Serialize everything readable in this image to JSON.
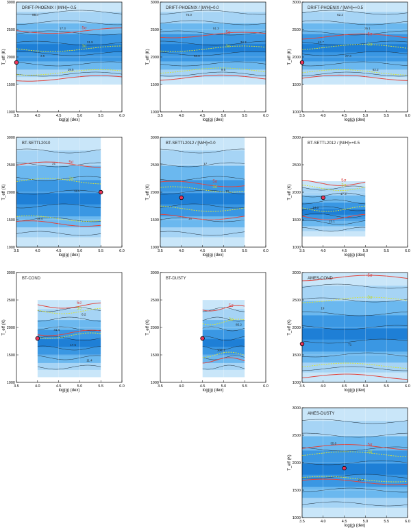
{
  "colors": {
    "band_outer": "#c9e6f9",
    "band_light": "#a6d4f5",
    "band_mid": "#6bb8ef",
    "band_dark": "#3a97e3",
    "band_darkest": "#1e7fd6",
    "contour": "#1d2d3a",
    "sigma5": "#e0463f",
    "sigma3": "#d9e23a",
    "star_fill": "#e8365a"
  },
  "axes": {
    "xlabel": "log(g) (dex)",
    "ylabel": "T_eff (K)",
    "xticks": [
      "3.5",
      "4.0",
      "4.5",
      "5.0",
      "5.5",
      "6.0"
    ],
    "yticks": [
      "1000",
      "1500",
      "2000",
      "2500",
      "3000"
    ]
  },
  "chart_data": [
    {
      "type": "heatmap",
      "title": "DRIFT-PHOENIX / [M/H]=-0.5",
      "xlim": [
        3.5,
        6.0
      ],
      "ylim": [
        1000,
        3000
      ],
      "grid": true,
      "coverage": {
        "x": [
          3.5,
          6.0
        ],
        "y": [
          1500,
          3000
        ]
      },
      "best_fit": {
        "x": 3.5,
        "y": 1900
      },
      "sigma5_T": [
        2480,
        1610
      ],
      "sigma3_T": [
        2150,
        1720
      ],
      "contour_levels": [
        "85.3",
        "17.3",
        "31.9",
        "3.5",
        "19.5"
      ]
    },
    {
      "type": "heatmap",
      "title": "DRIFT-PHOENIX / [M/H]=0.0",
      "xlim": [
        3.5,
        6.0
      ],
      "ylim": [
        1000,
        3000
      ],
      "grid": true,
      "coverage": {
        "x": [
          3.5,
          6.0
        ],
        "y": [
          1500,
          3000
        ]
      },
      "best_fit": null,
      "sigma5_T": [
        2400,
        1620
      ],
      "sigma3_T": [
        2150,
        1750
      ],
      "contour_levels": [
        "75.0",
        "51.3",
        "34.3",
        "58.0",
        "9.5"
      ]
    },
    {
      "type": "heatmap",
      "title": "DRIFT-PHOENIX / [M/H]=+0.5",
      "xlim": [
        3.5,
        6.0
      ],
      "ylim": [
        1000,
        3000
      ],
      "grid": true,
      "coverage": {
        "x": [
          3.5,
          6.0
        ],
        "y": [
          1500,
          3000
        ]
      },
      "best_fit": {
        "x": 3.5,
        "y": 1900
      },
      "sigma5_T": [
        2370,
        1620
      ],
      "sigma3_T": [
        2180,
        1720
      ],
      "contour_levels": [
        "62.2",
        "35.1",
        "41.7",
        "27.3",
        "62.2"
      ]
    },
    {
      "type": "heatmap",
      "title": "BT-SETTL2010",
      "xlim": [
        3.5,
        6.0
      ],
      "ylim": [
        1000,
        3000
      ],
      "grid": true,
      "coverage": {
        "x": [
          3.5,
          5.5
        ],
        "y": [
          1000,
          3000
        ]
      },
      "best_fit": {
        "x": 5.5,
        "y": 2000
      },
      "sigma5_T": [
        2500,
        1430
      ],
      "sigma3_T": [
        2200,
        1520
      ],
      "contour_levels": [
        "21",
        "16.5",
        "22.4"
      ]
    },
    {
      "type": "heatmap",
      "title": "BT-SETTL2012 / [M/H]=0.0",
      "xlim": [
        3.5,
        6.0
      ],
      "ylim": [
        1000,
        3000
      ],
      "grid": true,
      "coverage": {
        "x": [
          3.5,
          5.5
        ],
        "y": [
          1000,
          3000
        ]
      },
      "best_fit": {
        "x": 4.0,
        "y": 1900
      },
      "sigma5_T": [
        2150,
        1550
      ],
      "sigma3_T": [
        2050,
        1700
      ],
      "contour_levels": [
        "17",
        "16",
        "18"
      ]
    },
    {
      "type": "heatmap",
      "title": "BT-SETTL2012 / [M/H]=+0.5",
      "xlim": [
        3.5,
        6.0
      ],
      "ylim": [
        1000,
        3000
      ],
      "grid": true,
      "coverage": {
        "x": [
          3.5,
          5.0
        ],
        "y": [
          1200,
          2200
        ]
      },
      "best_fit": {
        "x": 4.0,
        "y": 1900
      },
      "sigma5_T": [
        2170,
        1550
      ],
      "sigma3_T": [
        2080,
        1700
      ],
      "contour_levels": [
        "17.3",
        "14.3",
        "22.1"
      ]
    },
    {
      "type": "heatmap",
      "title": "BT-COND",
      "xlim": [
        3.5,
        6.0
      ],
      "ylim": [
        1000,
        3000
      ],
      "grid": true,
      "coverage": {
        "x": [
          4.0,
          5.5
        ],
        "y": [
          1100,
          2500
        ]
      },
      "best_fit": {
        "x": 4.0,
        "y": 1800
      },
      "sigma5_T": [
        2400,
        1900
      ],
      "sigma3_T": [
        2300,
        1850
      ],
      "contour_levels": [
        "8.2",
        "41.5",
        "17.5",
        "11.4"
      ]
    },
    {
      "type": "heatmap",
      "title": "BT-DUSTY",
      "xlim": [
        3.5,
        6.0
      ],
      "ylim": [
        1000,
        3000
      ],
      "grid": true,
      "coverage": {
        "x": [
          4.5,
          5.5
        ],
        "y": [
          1100,
          2500
        ]
      },
      "best_fit": {
        "x": 4.5,
        "y": 1800
      },
      "sigma5_T": [
        2350,
        1400
      ],
      "sigma3_T": [
        2100,
        1500
      ],
      "contour_levels": [
        "85.2",
        "100.0"
      ]
    },
    {
      "type": "heatmap",
      "title": "AMES-COND",
      "xlim": [
        3.5,
        6.0
      ],
      "ylim": [
        1000,
        3000
      ],
      "grid": true,
      "coverage": {
        "x": [
          3.5,
          6.0
        ],
        "y": [
          1000,
          3000
        ]
      },
      "best_fit": {
        "x": 3.5,
        "y": 1700
      },
      "sigma5_T": [
        2900,
        1100
      ],
      "sigma3_T": [
        2500,
        1300
      ],
      "contour_levels": [
        "19",
        "71"
      ]
    },
    {
      "type": "heatmap",
      "title": "AMES-DUSTY",
      "xlim": [
        3.5,
        6.0
      ],
      "ylim": [
        1000,
        3000
      ],
      "grid": true,
      "coverage": {
        "x": [
          3.5,
          6.0
        ],
        "y": [
          1000,
          3000
        ]
      },
      "best_fit": {
        "x": 4.5,
        "y": 1900
      },
      "sigma5_T": [
        2280,
        1650
      ],
      "sigma3_T": [
        2150,
        1700
      ],
      "contour_levels": [
        "35.0",
        "29.0"
      ]
    }
  ]
}
